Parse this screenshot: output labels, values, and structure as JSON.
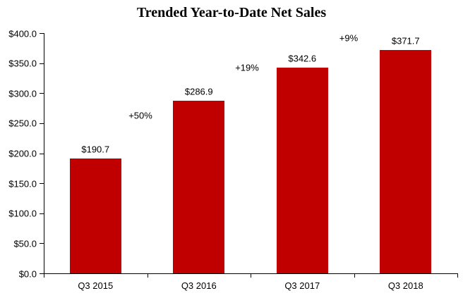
{
  "chart_data": {
    "type": "bar",
    "title": "Trended Year-to-Date Net Sales",
    "categories": [
      "Q3 2015",
      "Q3 2016",
      "Q3 2017",
      "Q3 2018"
    ],
    "values": [
      190.7,
      286.9,
      342.6,
      371.7
    ],
    "value_labels": [
      "$190.7",
      "$286.9",
      "$342.6",
      "$371.7"
    ],
    "annotations": [
      {
        "text": "+50%",
        "x": 199,
        "y": 164
      },
      {
        "text": "+19%",
        "x": 350,
        "y": 96
      },
      {
        "text": "+9%",
        "x": 494,
        "y": 54
      }
    ],
    "xlabel": "",
    "ylabel": "",
    "ylim": [
      0,
      400
    ],
    "y_ticks": [
      0,
      50,
      100,
      150,
      200,
      250,
      300,
      350,
      400
    ],
    "y_tick_labels": [
      "$0.0",
      "$50.0",
      "$100.0",
      "$150.0",
      "$200.0",
      "$250.0",
      "$300.0",
      "$350.0",
      "$400.0"
    ],
    "grid": false,
    "legend": false,
    "colors": {
      "bar": "#C00000",
      "axis": "#000000",
      "text": "#000000",
      "background": "#FFFFFF"
    }
  }
}
